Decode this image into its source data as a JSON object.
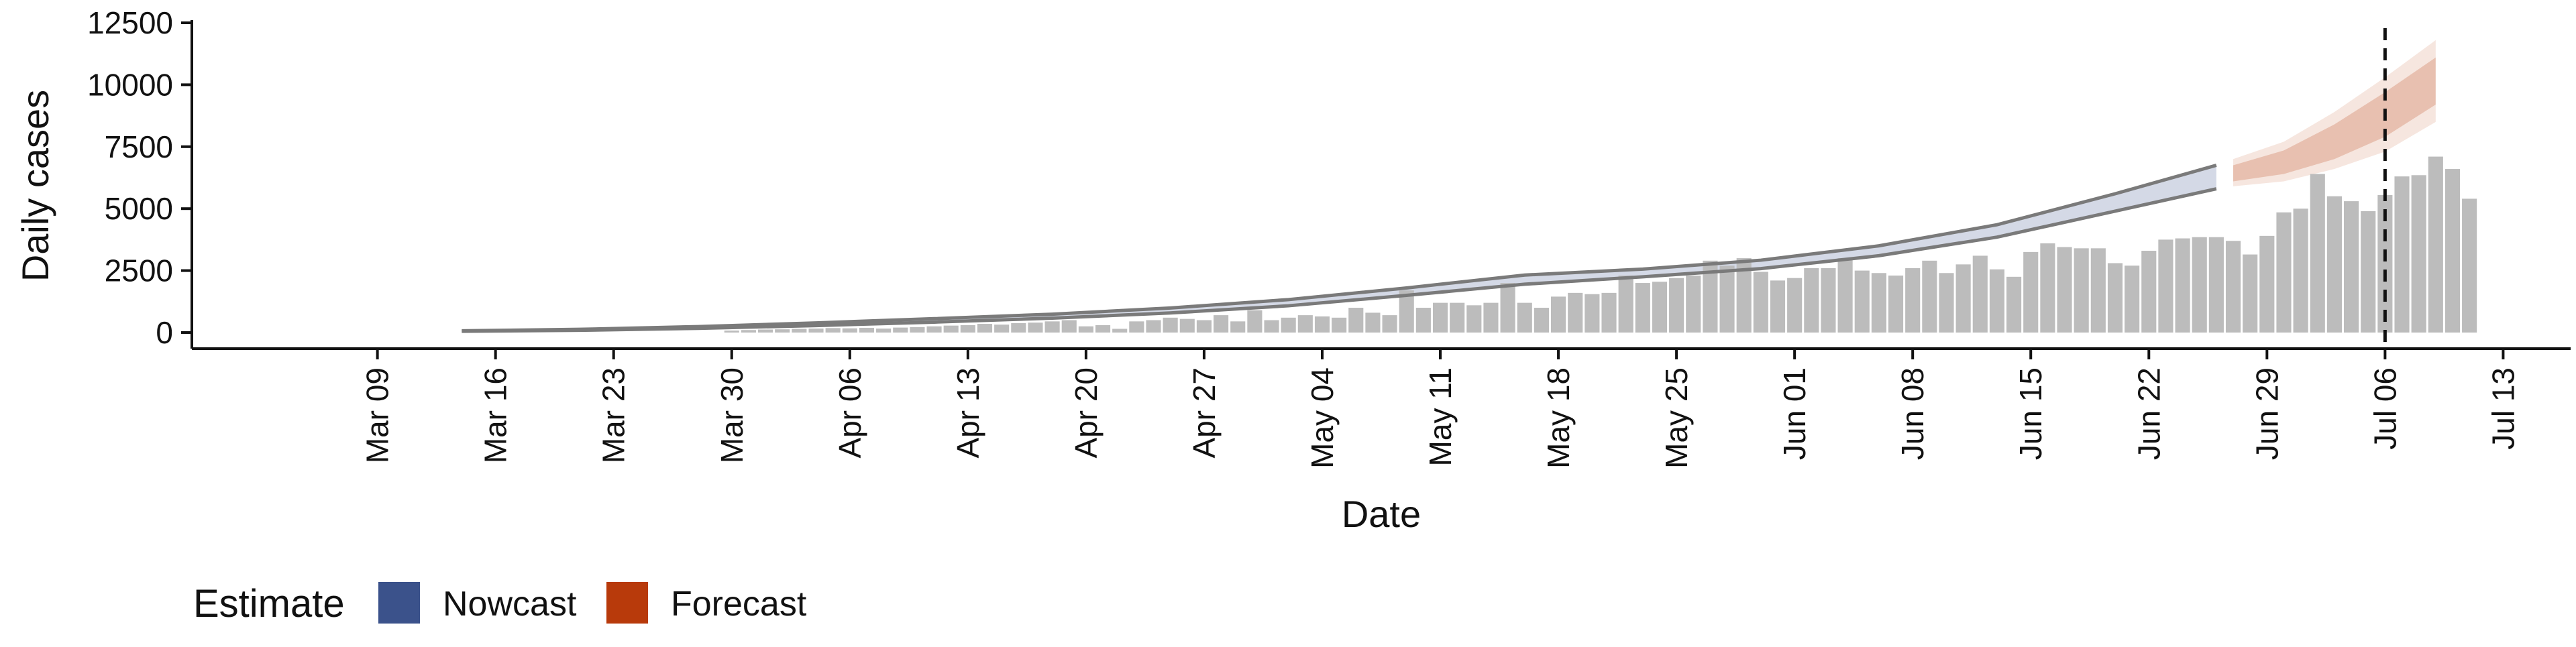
{
  "chart_data": {
    "type": "bar",
    "xlabel": "Date",
    "ylabel": "Daily cases",
    "x_range": [
      "2020-03-09",
      "2020-07-13"
    ],
    "ylim": [
      0,
      12500
    ],
    "y_ticks": [
      0,
      2500,
      5000,
      7500,
      10000,
      12500
    ],
    "x_ticks": [
      {
        "date": "2020-03-09",
        "label": "Mar 09"
      },
      {
        "date": "2020-03-16",
        "label": "Mar 16"
      },
      {
        "date": "2020-03-23",
        "label": "Mar 23"
      },
      {
        "date": "2020-03-30",
        "label": "Mar 30"
      },
      {
        "date": "2020-04-06",
        "label": "Apr 06"
      },
      {
        "date": "2020-04-13",
        "label": "Apr 13"
      },
      {
        "date": "2020-04-20",
        "label": "Apr 20"
      },
      {
        "date": "2020-04-27",
        "label": "Apr 27"
      },
      {
        "date": "2020-05-04",
        "label": "May 04"
      },
      {
        "date": "2020-05-11",
        "label": "May 11"
      },
      {
        "date": "2020-05-18",
        "label": "May 18"
      },
      {
        "date": "2020-05-25",
        "label": "May 25"
      },
      {
        "date": "2020-06-01",
        "label": "Jun 01"
      },
      {
        "date": "2020-06-08",
        "label": "Jun 08"
      },
      {
        "date": "2020-06-15",
        "label": "Jun 15"
      },
      {
        "date": "2020-06-22",
        "label": "Jun 22"
      },
      {
        "date": "2020-06-29",
        "label": "Jun 29"
      },
      {
        "date": "2020-07-06",
        "label": "Jul 06"
      },
      {
        "date": "2020-07-13",
        "label": "Jul 13"
      }
    ],
    "bars_start_date": "2020-03-30",
    "bars": [
      80,
      100,
      120,
      130,
      150,
      160,
      180,
      170,
      190,
      160,
      200,
      220,
      250,
      280,
      300,
      350,
      320,
      380,
      400,
      450,
      500,
      250,
      300,
      150,
      450,
      500,
      600,
      550,
      500,
      700,
      450,
      900,
      500,
      600,
      700,
      650,
      600,
      1000,
      800,
      700,
      1700,
      1000,
      1200,
      1200,
      1100,
      1200,
      2000,
      1200,
      1000,
      1450,
      1600,
      1550,
      1600,
      2300,
      2000,
      2050,
      2200,
      2300,
      2900,
      2700,
      3000,
      2450,
      2100,
      2200,
      2600,
      2600,
      3000,
      2500,
      2400,
      2300,
      2600,
      2900,
      2400,
      2750,
      3100,
      2550,
      2250,
      3250,
      3600,
      3450,
      3400,
      3400,
      2800,
      2700,
      3300,
      3750,
      3800,
      3850,
      3850,
      3700,
      3150,
      3900,
      4850,
      5000,
      6400,
      5500,
      5300,
      4900,
      5550,
      6300,
      6350,
      7100,
      6600,
      5400
    ],
    "nowcast": {
      "name": "Nowcast",
      "color": "#3B528B",
      "points": [
        {
          "x": "2020-03-14",
          "y": 60,
          "lower": 50,
          "upper": 70
        },
        {
          "x": "2020-03-21",
          "y": 110,
          "lower": 90,
          "upper": 130
        },
        {
          "x": "2020-03-28",
          "y": 200,
          "lower": 170,
          "upper": 240
        },
        {
          "x": "2020-04-04",
          "y": 330,
          "lower": 280,
          "upper": 390
        },
        {
          "x": "2020-04-11",
          "y": 480,
          "lower": 420,
          "upper": 560
        },
        {
          "x": "2020-04-18",
          "y": 650,
          "lower": 580,
          "upper": 740
        },
        {
          "x": "2020-04-25",
          "y": 880,
          "lower": 790,
          "upper": 990
        },
        {
          "x": "2020-05-02",
          "y": 1200,
          "lower": 1080,
          "upper": 1330
        },
        {
          "x": "2020-05-09",
          "y": 1650,
          "lower": 1500,
          "upper": 1800
        },
        {
          "x": "2020-05-16",
          "y": 2150,
          "lower": 1950,
          "upper": 2320
        },
        {
          "x": "2020-05-23",
          "y": 2420,
          "lower": 2250,
          "upper": 2560
        },
        {
          "x": "2020-05-30",
          "y": 2750,
          "lower": 2580,
          "upper": 2920
        },
        {
          "x": "2020-06-06",
          "y": 3300,
          "lower": 3100,
          "upper": 3500
        },
        {
          "x": "2020-06-13",
          "y": 4100,
          "lower": 3850,
          "upper": 4350
        },
        {
          "x": "2020-06-20",
          "y": 5250,
          "lower": 4900,
          "upper": 5600
        },
        {
          "x": "2020-06-26",
          "y": 6300,
          "lower": 5800,
          "upper": 6750
        }
      ]
    },
    "forecast": {
      "name": "Forecast",
      "color": "#B83A0B",
      "points": [
        {
          "x": "2020-06-27",
          "y": 6450,
          "lower": 6100,
          "upper": 6750,
          "lower_outer": 5900,
          "upper_outer": 7000
        },
        {
          "x": "2020-06-30",
          "y": 6900,
          "lower": 6400,
          "upper": 7350,
          "lower_outer": 6100,
          "upper_outer": 7700
        },
        {
          "x": "2020-07-03",
          "y": 7750,
          "lower": 7000,
          "upper": 8400,
          "lower_outer": 6600,
          "upper_outer": 8900
        },
        {
          "x": "2020-07-06",
          "y": 8800,
          "lower": 7900,
          "upper": 9700,
          "lower_outer": 7300,
          "upper_outer": 10300
        },
        {
          "x": "2020-07-09",
          "y": 10250,
          "lower": 9200,
          "upper": 11100,
          "lower_outer": 8500,
          "upper_outer": 11800
        }
      ]
    },
    "vline_date": "2020-07-06",
    "legend": {
      "title": "Estimate",
      "position": "bottom-left",
      "entries": [
        "Nowcast",
        "Forecast"
      ]
    },
    "grid": false
  }
}
